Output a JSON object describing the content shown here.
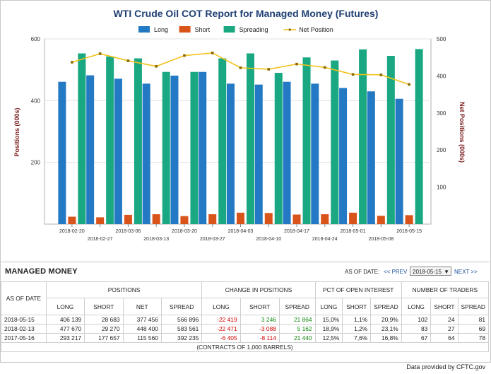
{
  "chart_data": {
    "type": "bar",
    "title": "WTI Crude Oil COT Report for Managed Money (Futures)",
    "ylabel": "Positions (000s)",
    "y2label": "Net Positions (000s)",
    "ylim": [
      0,
      600
    ],
    "y2lim": [
      0,
      500
    ],
    "yticks": [
      "200",
      "400",
      "600"
    ],
    "y2ticks": [
      "100",
      "200",
      "300",
      "400",
      "500"
    ],
    "grid": "horizontal",
    "legend_position": "top-center",
    "categories": [
      "2018-02-20",
      "2018-02-27",
      "2018-03-06",
      "2018-03-13",
      "2018-03-20",
      "2018-03-27",
      "2018-04-03",
      "2018-04-10",
      "2018-04-17",
      "2018-04-24",
      "2018-05-01",
      "2018-05-08",
      "2018-05-15"
    ],
    "series": [
      {
        "name": "Long",
        "axis": "left",
        "kind": "bar",
        "color": "#2479c4",
        "values": [
          461,
          482,
          471,
          455,
          481,
          493,
          455,
          452,
          461,
          455,
          441,
          430,
          406
        ]
      },
      {
        "name": "Short",
        "axis": "left",
        "kind": "bar",
        "color": "#d9541a",
        "values": [
          24,
          22,
          30,
          32,
          26,
          32,
          37,
          36,
          31,
          32,
          37,
          27,
          29
        ]
      },
      {
        "name": "Spreading",
        "axis": "left",
        "kind": "bar",
        "color": "#1aa883",
        "values": [
          553,
          543,
          537,
          493,
          493,
          537,
          553,
          490,
          540,
          530,
          566,
          545,
          567
        ]
      },
      {
        "name": "Net Position",
        "axis": "right",
        "kind": "line",
        "color": "#f2c21a",
        "values": [
          437,
          460,
          441,
          426,
          455,
          462,
          422,
          418,
          432,
          423,
          404,
          403,
          377
        ]
      }
    ]
  },
  "table": {
    "title": "MANAGED MONEY",
    "as_of_label": "AS OF DATE:",
    "prev_label": "<< PREV",
    "selected_date": "2018-05-15",
    "next_label": "NEXT >>",
    "as_of_header": "AS OF DATE",
    "groups": [
      "POSITIONS",
      "CHANGE IN POSITIONS",
      "PCT OF OPEN INTEREST",
      "NUMBER OF TRADERS"
    ],
    "subheaders": {
      "positions": [
        "LONG",
        "SHORT",
        "NET",
        "SPREAD"
      ],
      "change": [
        "LONG",
        "SHORT",
        "SPREAD"
      ],
      "pct": [
        "LONG",
        "SHORT",
        "SPREAD"
      ],
      "traders": [
        "LONG",
        "SHORT",
        "SPREAD"
      ]
    },
    "rows": [
      {
        "date": "2018-05-15",
        "positions": [
          "406 139",
          "28 683",
          "377 456",
          "566 896"
        ],
        "change": [
          "-22 419",
          "3 246",
          "21 864"
        ],
        "pct": [
          "15,0%",
          "1,1%",
          "20,9%"
        ],
        "traders": [
          "102",
          "24",
          "81"
        ]
      },
      {
        "date": "2018-02-13",
        "positions": [
          "477 670",
          "29 270",
          "448 400",
          "583 561"
        ],
        "change": [
          "-22 471",
          "-3 088",
          "5 162"
        ],
        "pct": [
          "18,9%",
          "1,2%",
          "23,1%"
        ],
        "traders": [
          "83",
          "27",
          "69"
        ]
      },
      {
        "date": "2017-05-16",
        "positions": [
          "293 217",
          "177 657",
          "115 560",
          "392 235"
        ],
        "change": [
          "-6 405",
          "-8 114",
          "21 440"
        ],
        "pct": [
          "12,5%",
          "7,6%",
          "16,8%"
        ],
        "traders": [
          "67",
          "64",
          "78"
        ]
      }
    ],
    "footnote": "(CONTRACTS OF 1,000 BARRELS)"
  },
  "footer": {
    "credit_prefix": "Data provided by",
    "credit_source": "CFTC.gov"
  }
}
